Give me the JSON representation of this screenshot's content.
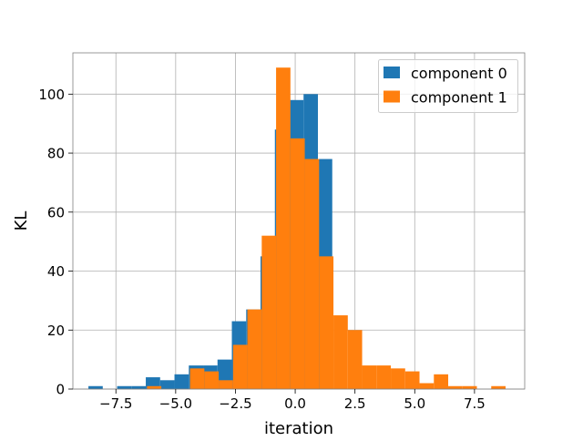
{
  "chart_data": {
    "type": "histogram",
    "title": "",
    "xlabel": "iteration",
    "ylabel": "KL",
    "xlim": [
      -9.3,
      9.6
    ],
    "ylim": [
      0,
      114
    ],
    "x_ticks": [
      -7.5,
      -5.0,
      -2.5,
      0.0,
      2.5,
      5.0,
      7.5
    ],
    "x_tick_labels": [
      "−7.5",
      "−5.0",
      "−2.5",
      "0.0",
      "2.5",
      "5.0",
      "7.5"
    ],
    "y_ticks": [
      0,
      20,
      40,
      60,
      80,
      100
    ],
    "y_tick_labels": [
      "0",
      "20",
      "40",
      "60",
      "80",
      "100"
    ],
    "grid": true,
    "legend_position": "top-right",
    "series": [
      {
        "name": "component 0",
        "color": "#1f77b4",
        "bin_edges": [
          -8.65,
          -8.05,
          -7.45,
          -6.85,
          -6.25,
          -5.65,
          -5.05,
          -4.45,
          -3.85,
          -3.25,
          -2.65,
          -2.05,
          -1.45,
          -0.85,
          -0.25,
          0.35,
          0.95,
          1.55
        ],
        "counts": [
          1,
          0,
          1,
          1,
          4,
          3,
          5,
          8,
          8,
          10,
          23,
          27,
          45,
          88,
          98,
          100,
          78
        ]
      },
      {
        "name": "component 1",
        "color": "#ff7f0e",
        "bin_edges": [
          -6.2,
          -5.6,
          -4.4,
          -3.8,
          -3.2,
          -2.6,
          -2.0,
          -1.4,
          -0.8,
          -0.2,
          0.4,
          1.0,
          1.6,
          2.2,
          2.8,
          3.4,
          4.0,
          4.6,
          5.2,
          5.8,
          6.4,
          7.0,
          7.6,
          8.2,
          8.8
        ],
        "counts": [
          1,
          0,
          7,
          6,
          3,
          15,
          27,
          52,
          109,
          85,
          78,
          45,
          25,
          20,
          8,
          8,
          7,
          6,
          2,
          5,
          1,
          1,
          0,
          1
        ]
      }
    ]
  }
}
